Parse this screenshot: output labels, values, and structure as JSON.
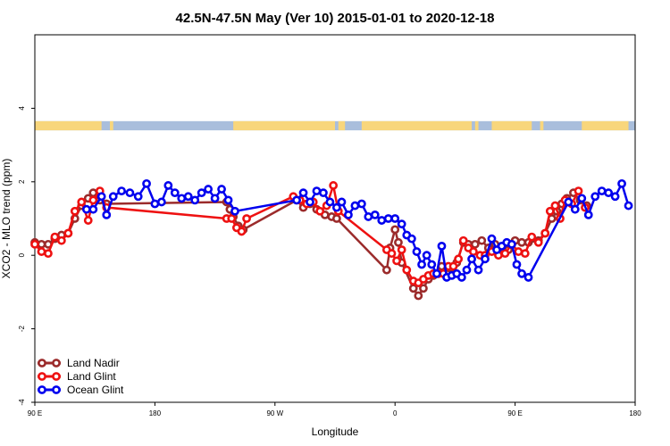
{
  "chart_data": {
    "type": "line",
    "title": "42.5N-47.5N May (Ver 10)   2015-01-01 to 2020-12-18",
    "xlabel": "Longitude",
    "ylabel": "XCO2 - MLO trend (ppm)",
    "xlim": [
      -90,
      270
    ],
    "ylim": [
      -4,
      6
    ],
    "x_ticks": [
      {
        "value": -90,
        "label": "90 E"
      },
      {
        "value": -18,
        "label": "180"
      },
      {
        "value": 54,
        "label": "90 W"
      },
      {
        "value": 126,
        "label": "0"
      },
      {
        "value": 198,
        "label": "90 E"
      },
      {
        "value": 270,
        "label": "180"
      }
    ],
    "y_ticks": [
      {
        "value": -4,
        "label": "-4"
      },
      {
        "value": -2,
        "label": "-2"
      },
      {
        "value": 0,
        "label": "0"
      },
      {
        "value": 2,
        "label": "2"
      },
      {
        "value": 4,
        "label": "4"
      }
    ],
    "grid": false,
    "legend_position": "bottom-left",
    "land_ocean_strip": {
      "y_range": [
        3.4,
        3.65
      ],
      "land_color": "#f8d67c",
      "ocean_color": "#a9bedc",
      "land_segments": [
        [
          -90,
          -50
        ],
        [
          -45,
          -43
        ],
        [
          29,
          90
        ],
        [
          92,
          96
        ],
        [
          106,
          172
        ],
        [
          174,
          176
        ],
        [
          184,
          208
        ],
        [
          213,
          215
        ],
        [
          238,
          266
        ]
      ]
    },
    "series": [
      {
        "name": "Land Nadir",
        "color": "#9b2b2b",
        "points": [
          [
            -90,
            0.35
          ],
          [
            -86,
            0.3
          ],
          [
            -82,
            0.3
          ],
          [
            -78,
            0.45
          ],
          [
            -74,
            0.55
          ],
          [
            -70,
            0.6
          ],
          [
            -66,
            1.0
          ],
          [
            -62,
            1.35
          ],
          [
            -58,
            1.55
          ],
          [
            -55,
            1.7
          ],
          [
            -51,
            1.5
          ],
          [
            -47,
            1.4
          ],
          [
            25,
            1.45
          ],
          [
            27,
            1.25
          ],
          [
            29,
            1.05
          ],
          [
            32,
            0.8
          ],
          [
            35,
            0.7
          ],
          [
            67,
            1.5
          ],
          [
            71,
            1.3
          ],
          [
            75,
            1.4
          ],
          [
            79,
            1.25
          ],
          [
            84,
            1.1
          ],
          [
            88,
            1.05
          ],
          [
            91,
            1.0
          ],
          [
            121,
            -0.4
          ],
          [
            123,
            0.2
          ],
          [
            126,
            0.7
          ],
          [
            128,
            0.35
          ],
          [
            130,
            -0.2
          ],
          [
            137,
            -0.9
          ],
          [
            140,
            -1.1
          ],
          [
            143,
            -0.9
          ],
          [
            146,
            -0.65
          ],
          [
            149,
            -0.55
          ],
          [
            154,
            -0.3
          ],
          [
            157,
            -0.5
          ],
          [
            160,
            -0.35
          ],
          [
            163,
            -0.2
          ],
          [
            167,
            0.35
          ],
          [
            170,
            0.3
          ],
          [
            174,
            0.3
          ],
          [
            178,
            0.4
          ],
          [
            182,
            0.2
          ],
          [
            186,
            0.3
          ],
          [
            190,
            0.2
          ],
          [
            194,
            0.15
          ],
          [
            198,
            0.4
          ],
          [
            202,
            0.35
          ],
          [
            206,
            0.35
          ],
          [
            212,
            0.4
          ],
          [
            216,
            0.6
          ],
          [
            220,
            1.0
          ],
          [
            223,
            1.2
          ],
          [
            226,
            1.4
          ],
          [
            229,
            1.55
          ],
          [
            233,
            1.7
          ],
          [
            237,
            1.5
          ],
          [
            241,
            1.35
          ]
        ]
      },
      {
        "name": "Land Glint",
        "color": "#ee1111",
        "points": [
          [
            -90,
            0.3
          ],
          [
            -86,
            0.1
          ],
          [
            -82,
            0.05
          ],
          [
            -78,
            0.5
          ],
          [
            -74,
            0.4
          ],
          [
            -70,
            0.6
          ],
          [
            -66,
            1.2
          ],
          [
            -62,
            1.45
          ],
          [
            -58,
            0.95
          ],
          [
            -55,
            1.5
          ],
          [
            -51,
            1.75
          ],
          [
            -47,
            1.3
          ],
          [
            25,
            1.0
          ],
          [
            28,
            1.0
          ],
          [
            31,
            0.75
          ],
          [
            34,
            0.65
          ],
          [
            37,
            1.0
          ],
          [
            65,
            1.6
          ],
          [
            69,
            1.5
          ],
          [
            73,
            1.4
          ],
          [
            77,
            1.45
          ],
          [
            81,
            1.2
          ],
          [
            85,
            1.35
          ],
          [
            89,
            1.9
          ],
          [
            92,
            1.2
          ],
          [
            121,
            0.15
          ],
          [
            124,
            0.05
          ],
          [
            127,
            -0.15
          ],
          [
            130,
            0.15
          ],
          [
            133,
            -0.4
          ],
          [
            137,
            -0.7
          ],
          [
            140,
            -0.75
          ],
          [
            143,
            -0.65
          ],
          [
            146,
            -0.55
          ],
          [
            149,
            -0.5
          ],
          [
            152,
            -0.5
          ],
          [
            155,
            -0.5
          ],
          [
            158,
            -0.3
          ],
          [
            161,
            -0.3
          ],
          [
            164,
            -0.1
          ],
          [
            167,
            0.4
          ],
          [
            170,
            0.2
          ],
          [
            173,
            0.1
          ],
          [
            177,
            0.0
          ],
          [
            180,
            0.0
          ],
          [
            184,
            0.1
          ],
          [
            188,
            0.0
          ],
          [
            192,
            0.05
          ],
          [
            196,
            0.3
          ],
          [
            200,
            0.1
          ],
          [
            204,
            0.05
          ],
          [
            208,
            0.5
          ],
          [
            212,
            0.35
          ],
          [
            216,
            0.6
          ],
          [
            219,
            1.2
          ],
          [
            222,
            1.35
          ],
          [
            225,
            1.0
          ],
          [
            228,
            1.5
          ],
          [
            232,
            1.4
          ],
          [
            236,
            1.75
          ],
          [
            240,
            1.3
          ]
        ]
      },
      {
        "name": "Ocean Glint",
        "color": "#0000ee",
        "points": [
          [
            -59,
            1.25
          ],
          [
            -55,
            1.25
          ],
          [
            -50,
            1.6
          ],
          [
            -47,
            1.1
          ],
          [
            -43,
            1.6
          ],
          [
            -38,
            1.75
          ],
          [
            -33,
            1.7
          ],
          [
            -28,
            1.6
          ],
          [
            -23,
            1.95
          ],
          [
            -18,
            1.4
          ],
          [
            -14,
            1.45
          ],
          [
            -10,
            1.9
          ],
          [
            -6,
            1.7
          ],
          [
            -2,
            1.55
          ],
          [
            2,
            1.6
          ],
          [
            6,
            1.5
          ],
          [
            10,
            1.7
          ],
          [
            14,
            1.8
          ],
          [
            18,
            1.55
          ],
          [
            22,
            1.8
          ],
          [
            26,
            1.5
          ],
          [
            30,
            1.2
          ],
          [
            67,
            1.5
          ],
          [
            71,
            1.7
          ],
          [
            75,
            1.45
          ],
          [
            79,
            1.75
          ],
          [
            83,
            1.7
          ],
          [
            87,
            1.45
          ],
          [
            91,
            1.3
          ],
          [
            94,
            1.45
          ],
          [
            98,
            1.1
          ],
          [
            102,
            1.35
          ],
          [
            106,
            1.4
          ],
          [
            110,
            1.05
          ],
          [
            114,
            1.1
          ],
          [
            118,
            0.95
          ],
          [
            122,
            1.0
          ],
          [
            126,
            1.0
          ],
          [
            130,
            0.85
          ],
          [
            133,
            0.55
          ],
          [
            136,
            0.45
          ],
          [
            139,
            0.1
          ],
          [
            142,
            -0.25
          ],
          [
            145,
            0.0
          ],
          [
            148,
            -0.25
          ],
          [
            151,
            -0.5
          ],
          [
            154,
            0.25
          ],
          [
            157,
            -0.6
          ],
          [
            160,
            -0.55
          ],
          [
            163,
            -0.5
          ],
          [
            166,
            -0.6
          ],
          [
            169,
            -0.4
          ],
          [
            172,
            -0.1
          ],
          [
            176,
            -0.4
          ],
          [
            180,
            -0.1
          ],
          [
            184,
            0.45
          ],
          [
            187,
            0.15
          ],
          [
            190,
            0.25
          ],
          [
            193,
            0.35
          ],
          [
            196,
            0.3
          ],
          [
            199,
            -0.25
          ],
          [
            202,
            -0.5
          ],
          [
            206,
            -0.6
          ],
          [
            230,
            1.45
          ],
          [
            234,
            1.25
          ],
          [
            238,
            1.55
          ],
          [
            242,
            1.1
          ],
          [
            246,
            1.6
          ],
          [
            250,
            1.75
          ],
          [
            254,
            1.7
          ],
          [
            258,
            1.6
          ],
          [
            262,
            1.95
          ],
          [
            266,
            1.35
          ]
        ]
      }
    ]
  }
}
